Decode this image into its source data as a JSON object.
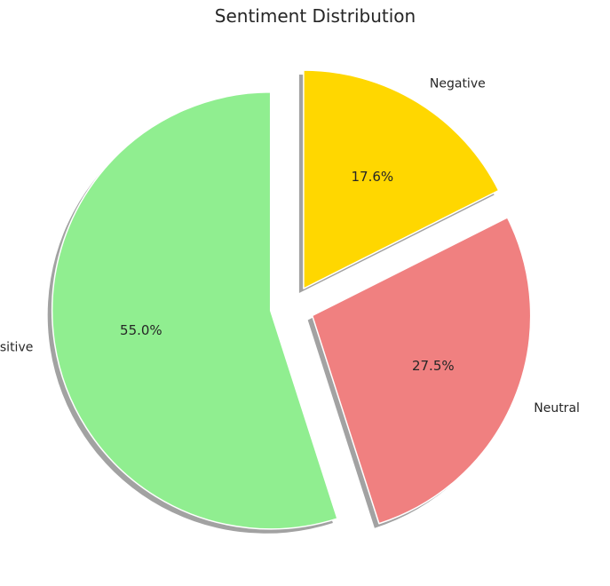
{
  "chart_data": {
    "type": "pie",
    "title": "Sentiment Distribution",
    "categories": [
      "Positive",
      "Neutral",
      "Negative"
    ],
    "values": [
      55.0,
      27.5,
      17.6
    ],
    "value_labels": [
      "55.0%",
      "27.5%",
      "17.6%"
    ],
    "colors": [
      "#90ee90",
      "#f08080",
      "#ffd700"
    ],
    "start_angle_deg": 90,
    "direction": "counterclockwise",
    "explode": [
      0.1,
      0.1,
      0.1
    ],
    "shadow": true
  }
}
